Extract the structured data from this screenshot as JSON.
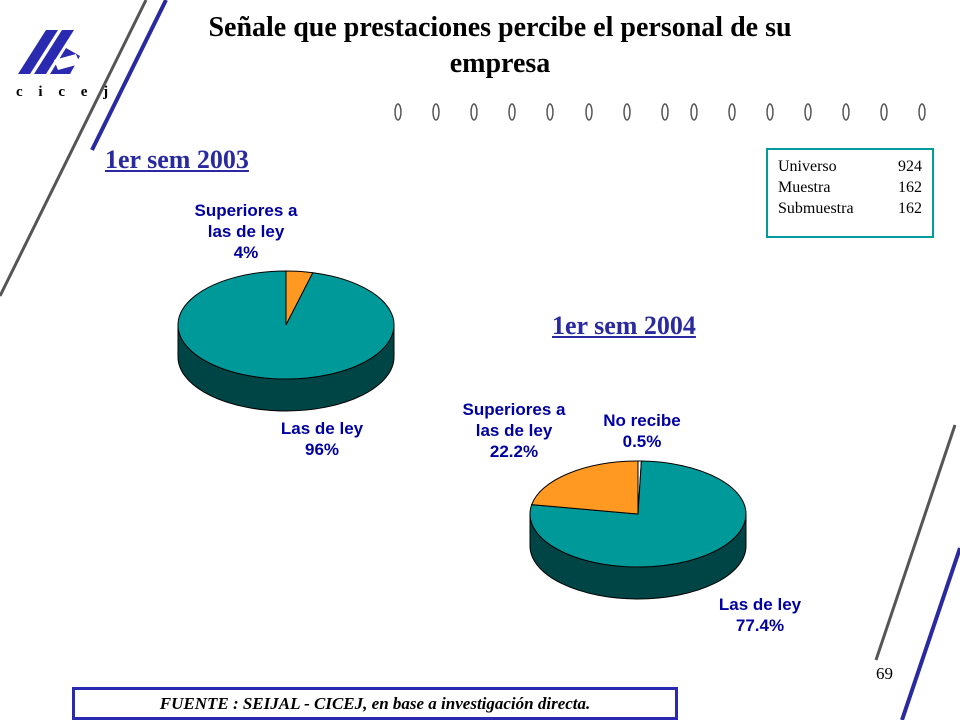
{
  "logo": {
    "text": "c i c e j"
  },
  "title": "Señale que prestaciones percibe el personal de su empresa",
  "stats": [
    {
      "label": "Universo",
      "value": "924"
    },
    {
      "label": "Muestra",
      "value": "162"
    },
    {
      "label": "Submuestra",
      "value": "162"
    }
  ],
  "chart_data": [
    {
      "type": "pie",
      "title": "1er sem 2003",
      "slices": [
        {
          "label": "Superiores a las de ley",
          "value": 4,
          "value_label": "4%",
          "color": "#ff9922"
        },
        {
          "label": "Las de ley",
          "value": 96,
          "value_label": "96%",
          "color": "#009999"
        }
      ]
    },
    {
      "type": "pie",
      "title": "1er sem 2004",
      "slices": [
        {
          "label": "No recibe",
          "value": 0.5,
          "value_label": "0.5%",
          "color": "#ffffff"
        },
        {
          "label": "Las de ley",
          "value": 77.4,
          "value_label": "77.4%",
          "color": "#009999"
        },
        {
          "label": "Superiores a las de ley",
          "value": 22.2,
          "value_label": "22.2%",
          "color": "#ff9922"
        }
      ]
    }
  ],
  "colors": {
    "accent_blue": "#2a2aa0",
    "teal": "#009999",
    "orange": "#ff9922",
    "label_blue": "#0000a0"
  },
  "footer": {
    "source": "FUENTE : SEIJAL - CICEJ, en base a investigación directa.",
    "page": "69"
  }
}
